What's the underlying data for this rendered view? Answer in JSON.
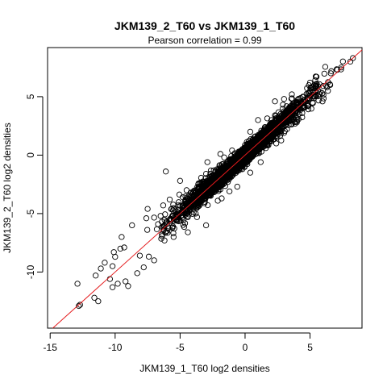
{
  "chart_data": {
    "type": "scatter",
    "title": "JKM139_2_T60 vs JKM139_1_T60",
    "subtitle": "Pearson correlation =  0.99",
    "xlabel": "JKM139_1_T60 log2 densities",
    "ylabel": "JKM139_2_T60 log2 densities",
    "xlim": [
      -15.2,
      9.0
    ],
    "ylim": [
      -14.8,
      9.2
    ],
    "xticks": [
      -15,
      -10,
      -5,
      0,
      5
    ],
    "yticks": [
      -10,
      -5,
      0,
      5
    ],
    "xtick_labels": [
      "-15",
      "-10",
      "-5",
      "0",
      "5"
    ],
    "ytick_labels": [
      "-10",
      "-5",
      "0",
      "5"
    ],
    "reference_line": {
      "slope": 1,
      "intercept": 0,
      "color": "#e41a1c"
    },
    "point_color": "#000000",
    "approx_correlation": 0.99,
    "sample_points": [
      [
        -12.8,
        -12.9
      ],
      [
        -12.7,
        -12.8
      ],
      [
        -12.9,
        -11.0
      ],
      [
        -11.6,
        -12.2
      ],
      [
        -11.3,
        -12.5
      ],
      [
        -11.5,
        -10.3
      ],
      [
        -11.1,
        -9.7
      ],
      [
        -10.8,
        -9.2
      ],
      [
        -10.2,
        -9.5
      ],
      [
        -10.1,
        -8.3
      ],
      [
        -9.6,
        -8.0
      ],
      [
        -9.5,
        -7.0
      ],
      [
        -9.3,
        -7.9
      ],
      [
        -10.0,
        -8.7
      ],
      [
        -10.4,
        -10.6
      ],
      [
        -9.2,
        -10.8
      ],
      [
        -10.2,
        -11.3
      ],
      [
        -9.8,
        -11.0
      ],
      [
        -9.0,
        -11.2
      ],
      [
        -8.3,
        -10.1
      ],
      [
        -8.1,
        -8.6
      ],
      [
        -7.8,
        -9.6
      ],
      [
        -7.0,
        -9.0
      ],
      [
        -8.7,
        -6.0
      ],
      [
        -7.6,
        -5.4
      ],
      [
        -6.5,
        -5.2
      ],
      [
        -6.3,
        -6.1
      ],
      [
        -6.0,
        -5.9
      ],
      [
        -6.1,
        -1.4
      ],
      [
        -5.0,
        -2.2
      ],
      [
        -5.8,
        -3.8
      ],
      [
        -6.3,
        -4.3
      ],
      [
        -7.5,
        -4.6
      ],
      [
        -6.4,
        -6.8
      ],
      [
        -6.2,
        -7.3
      ],
      [
        -4.5,
        -3.0
      ],
      [
        -3.6,
        -2.5
      ],
      [
        -3.0,
        -1.6
      ],
      [
        -2.4,
        -1.3
      ],
      [
        -1.9,
        0.1
      ],
      [
        -2.9,
        -0.6
      ],
      [
        -1.0,
        0.4
      ],
      [
        0.4,
        2.0
      ],
      [
        1.0,
        3.0
      ],
      [
        2.3,
        4.6
      ],
      [
        3.0,
        4.8
      ],
      [
        3.6,
        5.2
      ],
      [
        5.0,
        6.2
      ],
      [
        5.4,
        6.4
      ],
      [
        6.6,
        7.0
      ],
      [
        7.4,
        7.5
      ],
      [
        8.1,
        8.0
      ],
      [
        8.3,
        8.3
      ],
      [
        1.6,
        0.6
      ],
      [
        2.4,
        1.0
      ],
      [
        3.0,
        1.9
      ],
      [
        1.2,
        -0.6
      ],
      [
        0.4,
        -1.5
      ],
      [
        -0.6,
        -2.7
      ],
      [
        -1.2,
        -3.1
      ],
      [
        -1.8,
        -3.7
      ],
      [
        -3.7,
        -5.3
      ],
      [
        -4.4,
        -6.6
      ],
      [
        -3.8,
        -5.0
      ],
      [
        -5.5,
        -7.0
      ],
      [
        4.4,
        3.6
      ],
      [
        5.2,
        4.5
      ],
      [
        6.3,
        5.8
      ],
      [
        7.1,
        7.3
      ],
      [
        -3.0,
        -6.0
      ],
      [
        -2.1,
        -3.9
      ],
      [
        -4.8,
        -3.6
      ],
      [
        -0.2,
        -1.2
      ],
      [
        0.8,
        1.6
      ],
      [
        2.8,
        2.1
      ]
    ],
    "cloud": {
      "description_count": 3000,
      "x_range": [
        -8.5,
        8.2
      ],
      "noise_sd_center": 0.35,
      "noise_sd_tail": 0.9
    }
  }
}
